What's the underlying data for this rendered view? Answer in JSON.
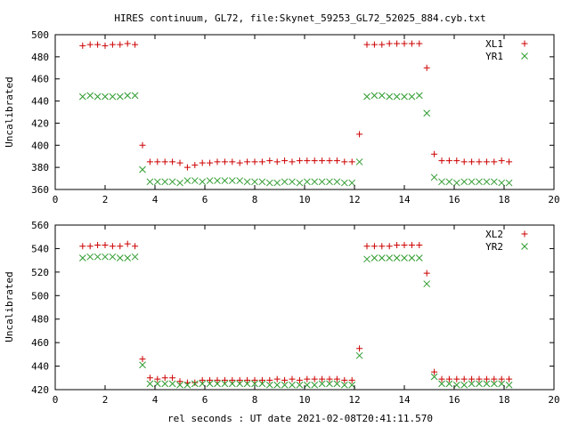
{
  "title": "HIRES continuum, GL72, file:Skynet_59253_GL72_52025_884.cyb.txt",
  "xlabel": "rel seconds : UT date 2021-02-08T20:41:11.570",
  "colors": {
    "red": "#cc0000",
    "green": "#2e9b2e",
    "axis": "#000000"
  },
  "chart_data": [
    {
      "type": "scatter",
      "title": "HIRES continuum, GL72, file:Skynet_59253_GL72_52025_884.cyb.txt",
      "xlabel": "",
      "ylabel": "Uncalibrated",
      "xlim": [
        0,
        20
      ],
      "ylim": [
        360,
        500
      ],
      "xticks": [
        0,
        2,
        4,
        6,
        8,
        10,
        12,
        14,
        16,
        18,
        20
      ],
      "yticks": [
        360,
        380,
        400,
        420,
        440,
        460,
        480,
        500
      ],
      "grid": false,
      "legend_position": "top-right",
      "series": [
        {
          "name": "XL1",
          "marker": "plus",
          "color": "#cc0000",
          "x": [
            1.1,
            1.4,
            1.7,
            2.0,
            2.3,
            2.6,
            2.9,
            3.2,
            3.5,
            3.8,
            4.1,
            4.4,
            4.7,
            5.0,
            5.3,
            5.6,
            5.9,
            6.2,
            6.5,
            6.8,
            7.1,
            7.4,
            7.7,
            8.0,
            8.3,
            8.6,
            8.9,
            9.2,
            9.5,
            9.8,
            10.1,
            10.4,
            10.7,
            11.0,
            11.3,
            11.6,
            11.9,
            12.2,
            12.5,
            12.8,
            13.1,
            13.4,
            13.7,
            14.0,
            14.3,
            14.6,
            14.9,
            15.2,
            15.5,
            15.8,
            16.1,
            16.4,
            16.7,
            17.0,
            17.3,
            17.6,
            17.9,
            18.2
          ],
          "y": [
            490,
            491,
            491,
            490,
            491,
            491,
            492,
            491,
            400,
            385,
            385,
            385,
            385,
            384,
            380,
            382,
            384,
            384,
            385,
            385,
            385,
            384,
            385,
            385,
            385,
            386,
            385,
            386,
            385,
            386,
            386,
            386,
            386,
            386,
            386,
            385,
            385,
            410,
            491,
            491,
            491,
            492,
            492,
            492,
            492,
            492,
            470,
            392,
            386,
            386,
            386,
            385,
            385,
            385,
            385,
            385,
            386,
            385
          ]
        },
        {
          "name": "YR1",
          "marker": "cross",
          "color": "#2e9b2e",
          "x": [
            1.1,
            1.4,
            1.7,
            2.0,
            2.3,
            2.6,
            2.9,
            3.2,
            3.5,
            3.8,
            4.1,
            4.4,
            4.7,
            5.0,
            5.3,
            5.6,
            5.9,
            6.2,
            6.5,
            6.8,
            7.1,
            7.4,
            7.7,
            8.0,
            8.3,
            8.6,
            8.9,
            9.2,
            9.5,
            9.8,
            10.1,
            10.4,
            10.7,
            11.0,
            11.3,
            11.6,
            11.9,
            12.2,
            12.5,
            12.8,
            13.1,
            13.4,
            13.7,
            14.0,
            14.3,
            14.6,
            14.9,
            15.2,
            15.5,
            15.8,
            16.1,
            16.4,
            16.7,
            17.0,
            17.3,
            17.6,
            17.9,
            18.2
          ],
          "y": [
            444,
            445,
            444,
            444,
            444,
            444,
            445,
            445,
            378,
            367,
            367,
            367,
            367,
            366,
            368,
            368,
            367,
            368,
            368,
            368,
            368,
            368,
            367,
            367,
            367,
            366,
            366,
            367,
            367,
            366,
            367,
            367,
            367,
            367,
            367,
            366,
            366,
            385,
            444,
            445,
            445,
            444,
            444,
            444,
            444,
            445,
            429,
            371,
            367,
            367,
            366,
            367,
            367,
            367,
            367,
            367,
            366,
            366
          ]
        }
      ]
    },
    {
      "type": "scatter",
      "title": "",
      "xlabel": "rel seconds : UT date 2021-02-08T20:41:11.570",
      "ylabel": "Uncalibrated",
      "xlim": [
        0,
        20
      ],
      "ylim": [
        420,
        560
      ],
      "xticks": [
        0,
        2,
        4,
        6,
        8,
        10,
        12,
        14,
        16,
        18,
        20
      ],
      "yticks": [
        420,
        440,
        460,
        480,
        500,
        520,
        540,
        560
      ],
      "grid": false,
      "legend_position": "top-right",
      "series": [
        {
          "name": "XL2",
          "marker": "plus",
          "color": "#cc0000",
          "x": [
            1.1,
            1.4,
            1.7,
            2.0,
            2.3,
            2.6,
            2.9,
            3.2,
            3.5,
            3.8,
            4.1,
            4.4,
            4.7,
            5.0,
            5.3,
            5.6,
            5.9,
            6.2,
            6.5,
            6.8,
            7.1,
            7.4,
            7.7,
            8.0,
            8.3,
            8.6,
            8.9,
            9.2,
            9.5,
            9.8,
            10.1,
            10.4,
            10.7,
            11.0,
            11.3,
            11.6,
            11.9,
            12.2,
            12.5,
            12.8,
            13.1,
            13.4,
            13.7,
            14.0,
            14.3,
            14.6,
            14.9,
            15.2,
            15.5,
            15.8,
            16.1,
            16.4,
            16.7,
            17.0,
            17.3,
            17.6,
            17.9,
            18.2
          ],
          "y": [
            542,
            542,
            543,
            543,
            542,
            542,
            544,
            542,
            446,
            430,
            429,
            430,
            430,
            427,
            426,
            426,
            428,
            428,
            428,
            428,
            428,
            428,
            428,
            428,
            428,
            428,
            429,
            428,
            429,
            428,
            429,
            429,
            429,
            429,
            429,
            428,
            428,
            455,
            542,
            542,
            542,
            542,
            543,
            543,
            543,
            543,
            519,
            435,
            429,
            429,
            429,
            429,
            429,
            429,
            429,
            429,
            429,
            429
          ]
        },
        {
          "name": "YR2",
          "marker": "cross",
          "color": "#2e9b2e",
          "x": [
            1.1,
            1.4,
            1.7,
            2.0,
            2.3,
            2.6,
            2.9,
            3.2,
            3.5,
            3.8,
            4.1,
            4.4,
            4.7,
            5.0,
            5.3,
            5.6,
            5.9,
            6.2,
            6.5,
            6.8,
            7.1,
            7.4,
            7.7,
            8.0,
            8.3,
            8.6,
            8.9,
            9.2,
            9.5,
            9.8,
            10.1,
            10.4,
            10.7,
            11.0,
            11.3,
            11.6,
            11.9,
            12.2,
            12.5,
            12.8,
            13.1,
            13.4,
            13.7,
            14.0,
            14.3,
            14.6,
            14.9,
            15.2,
            15.5,
            15.8,
            16.1,
            16.4,
            16.7,
            17.0,
            17.3,
            17.6,
            17.9,
            18.2
          ],
          "y": [
            532,
            533,
            533,
            533,
            533,
            532,
            532,
            533,
            441,
            425,
            425,
            425,
            425,
            424,
            424,
            425,
            425,
            425,
            425,
            425,
            425,
            425,
            425,
            425,
            425,
            424,
            424,
            424,
            424,
            424,
            424,
            424,
            425,
            425,
            425,
            424,
            424,
            449,
            531,
            532,
            532,
            532,
            532,
            532,
            532,
            532,
            510,
            431,
            425,
            425,
            424,
            424,
            425,
            425,
            425,
            425,
            425,
            424
          ]
        }
      ]
    }
  ]
}
